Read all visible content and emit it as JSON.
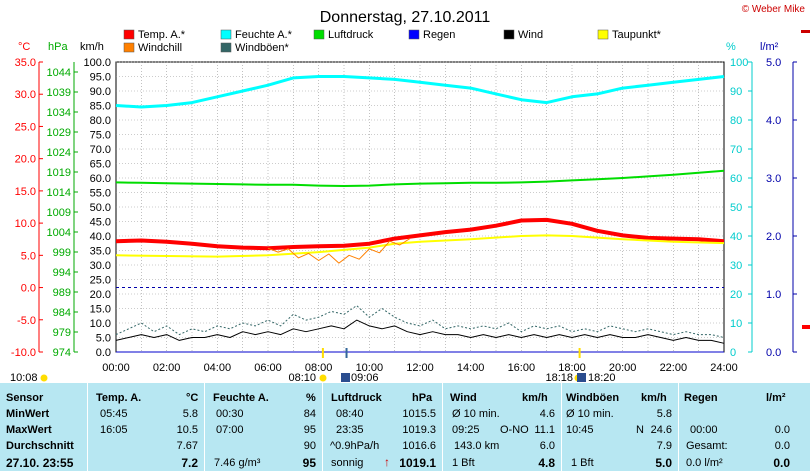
{
  "page": {
    "title": "Donnerstag, 27.10.2011",
    "copyright": "© Weber Mike"
  },
  "axis_units": {
    "temp": "°C",
    "pressure": "hPa",
    "wind": "km/h",
    "humidity": "%",
    "rain": "l/m²"
  },
  "legend": [
    {
      "label": "Temp. A.*",
      "color": "#ff0000"
    },
    {
      "label": "Feuchte A.*",
      "color": "#00ffff"
    },
    {
      "label": "Luftdruck",
      "color": "#00dd00"
    },
    {
      "label": "Regen",
      "color": "#0000ff"
    },
    {
      "label": "Wind",
      "color": "#000000"
    },
    {
      "label": "Taupunkt*",
      "color": "#ffff00"
    },
    {
      "label": "Windchill",
      "color": "#ff8000"
    },
    {
      "label": "Windböen*",
      "color": "#336666"
    }
  ],
  "colors": {
    "temp_axis": "#ff0000",
    "pressure_axis": "#00aa00",
    "humidity_axis": "#00cccc",
    "rain_axis": "#0000aa",
    "table_bg": "#b7e7f2",
    "rain_line": "#0000cc"
  },
  "markers": {
    "sunrise": "08:10",
    "sunset": "18:18",
    "moonrise": "09:06",
    "moonset": "18:20",
    "moon_prev": "10:08"
  },
  "table": {
    "headers": {
      "sensor": "Sensor",
      "temp": "Temp. A.",
      "temp_unit": "°C",
      "hum": "Feuchte A.",
      "hum_unit": "%",
      "press": "Luftdruck",
      "press_unit": "hPa",
      "wind": "Wind",
      "wind_unit": "km/h",
      "gust": "Windböen",
      "gust_unit": "km/h",
      "rain": "Regen",
      "rain_unit": "l/m²"
    },
    "rows": {
      "min": {
        "label": "MinWert",
        "temp_time": "05:45",
        "temp_val": "5.8",
        "hum_time": "00:30",
        "hum_val": "84",
        "press_time": "08:40",
        "press_val": "1015.5",
        "wind_a": "Ø 10 min.",
        "wind_val": "4.6",
        "gust_a": "Ø 10 min.",
        "gust_val": "5.8",
        "rain_a": "",
        "rain_val": ""
      },
      "max": {
        "label": "MaxWert",
        "temp_time": "16:05",
        "temp_val": "10.5",
        "hum_time": "07:00",
        "hum_val": "95",
        "press_time": "23:35",
        "press_val": "1019.3",
        "wind_a": "09:25",
        "wind_b": "O-NO",
        "wind_val": "11.1",
        "gust_a": "10:45",
        "gust_b": "N",
        "gust_val": "24.6",
        "rain_a": "00:00",
        "rain_val": "0.0"
      },
      "avg": {
        "label": "Durchschnitt",
        "temp_time": "",
        "temp_val": "7.67",
        "hum_time": "",
        "hum_val": "90",
        "press_time": "^0.9hPa/h",
        "press_val": "1016.6",
        "wind_a": "143.0 km",
        "wind_val": "6.0",
        "gust_a": "",
        "gust_val": "7.9",
        "rain_a": "Gesamt:",
        "rain_val": "0.0"
      },
      "now": {
        "label": "27.10. 23:55",
        "temp_time": "",
        "temp_val": "7.2",
        "hum_time": "7.46 g/m³",
        "hum_val": "95",
        "press_time": "sonnig",
        "press_trend": "↑",
        "press_val": "1019.1",
        "wind_a": "1 Bft",
        "wind_val": "4.8",
        "gust_a": "1 Bft",
        "gust_val": "5.0",
        "rain_a": "0.0 l/m²",
        "rain_val": "0.0"
      }
    }
  },
  "chart_data": {
    "type": "line",
    "title": "Donnerstag, 27.10.2011",
    "x_axis": {
      "label": "",
      "unit": "hour",
      "range": [
        0,
        24
      ],
      "ticks": [
        "00:00",
        "02:00",
        "04:00",
        "06:00",
        "08:00",
        "10:00",
        "12:00",
        "14:00",
        "16:00",
        "18:00",
        "20:00",
        "22:00",
        "24:00"
      ]
    },
    "y_axes": {
      "temp": {
        "unit": "°C",
        "range": [
          -10,
          35
        ],
        "ticks": [
          "35.0",
          "30.0",
          "25.0",
          "20.0",
          "15.0",
          "10.0",
          "5.0",
          "0.0",
          "-5.0",
          "-10.0"
        ]
      },
      "pressure": {
        "unit": "hPa",
        "range": [
          974,
          1046.5
        ],
        "ticks": [
          "1044",
          "1039",
          "1034",
          "1029",
          "1024",
          "1019",
          "1014",
          "1009",
          "1004",
          "999",
          "994",
          "989",
          "984",
          "979",
          "974"
        ]
      },
      "wind": {
        "unit": "km/h",
        "range": [
          0,
          100
        ],
        "ticks": [
          "100.0",
          "95.0",
          "90.0",
          "85.0",
          "80.0",
          "75.0",
          "70.0",
          "65.0",
          "60.0",
          "55.0",
          "50.0",
          "45.0",
          "40.0",
          "35.0",
          "30.0",
          "25.0",
          "20.0",
          "15.0",
          "10.0",
          "5.0",
          "0.0"
        ]
      },
      "humidity": {
        "unit": "%",
        "range": [
          0,
          100
        ],
        "ticks": [
          "100",
          "90",
          "80",
          "70",
          "60",
          "50",
          "40",
          "30",
          "20",
          "10",
          "0"
        ]
      },
      "rain": {
        "unit": "l/m²",
        "range": [
          0,
          5
        ],
        "ticks": [
          "5.0",
          "4.0",
          "3.0",
          "2.0",
          "1.0",
          "0.0"
        ]
      }
    },
    "grid": true,
    "series": [
      {
        "name": "Temp. A.*",
        "axis": "temp",
        "color": "#ff0000",
        "width": 4,
        "points": [
          [
            0,
            7.2
          ],
          [
            1,
            7.3
          ],
          [
            2,
            7.1
          ],
          [
            3,
            6.8
          ],
          [
            4,
            6.4
          ],
          [
            5,
            6.2
          ],
          [
            6,
            6.1
          ],
          [
            7,
            6.3
          ],
          [
            8,
            6.4
          ],
          [
            9,
            6.5
          ],
          [
            10,
            6.8
          ],
          [
            11,
            7.6
          ],
          [
            12,
            8.1
          ],
          [
            13,
            8.6
          ],
          [
            14,
            9.0
          ],
          [
            15,
            9.6
          ],
          [
            16,
            10.4
          ],
          [
            17,
            10.5
          ],
          [
            18,
            9.9
          ],
          [
            19,
            8.8
          ],
          [
            20,
            8.1
          ],
          [
            21,
            7.7
          ],
          [
            22,
            7.6
          ],
          [
            23,
            7.5
          ],
          [
            24,
            7.2
          ]
        ]
      },
      {
        "name": "Feuchte A.*",
        "axis": "humidity",
        "color": "#00ffff",
        "width": 3,
        "points": [
          [
            0,
            85
          ],
          [
            1,
            84.5
          ],
          [
            2,
            85
          ],
          [
            3,
            86
          ],
          [
            4,
            88
          ],
          [
            5,
            90
          ],
          [
            6,
            92
          ],
          [
            7,
            94.5
          ],
          [
            8,
            95
          ],
          [
            9,
            95
          ],
          [
            10,
            94.5
          ],
          [
            11,
            94
          ],
          [
            12,
            93
          ],
          [
            13,
            92
          ],
          [
            14,
            91
          ],
          [
            15,
            89
          ],
          [
            16,
            87
          ],
          [
            17,
            86
          ],
          [
            18,
            88
          ],
          [
            19,
            89
          ],
          [
            20,
            91
          ],
          [
            21,
            92
          ],
          [
            22,
            93
          ],
          [
            23,
            94
          ],
          [
            24,
            95
          ]
        ]
      },
      {
        "name": "Luftdruck",
        "axis": "pressure",
        "color": "#00dd00",
        "width": 2,
        "points": [
          [
            0,
            1016.4
          ],
          [
            1,
            1016.3
          ],
          [
            2,
            1016.2
          ],
          [
            3,
            1016.1
          ],
          [
            4,
            1016.0
          ],
          [
            5,
            1015.9
          ],
          [
            6,
            1015.8
          ],
          [
            7,
            1015.8
          ],
          [
            8,
            1015.6
          ],
          [
            9,
            1015.5
          ],
          [
            10,
            1015.6
          ],
          [
            11,
            1015.9
          ],
          [
            12,
            1016.1
          ],
          [
            13,
            1016.2
          ],
          [
            14,
            1016.3
          ],
          [
            15,
            1016.3
          ],
          [
            16,
            1016.4
          ],
          [
            17,
            1016.6
          ],
          [
            18,
            1016.9
          ],
          [
            19,
            1017.2
          ],
          [
            20,
            1017.5
          ],
          [
            21,
            1017.9
          ],
          [
            22,
            1018.3
          ],
          [
            23,
            1018.8
          ],
          [
            24,
            1019.3
          ]
        ]
      },
      {
        "name": "Taupunkt*",
        "axis": "temp",
        "color": "#ffff00",
        "width": 2,
        "points": [
          [
            0,
            5.0
          ],
          [
            2,
            4.9
          ],
          [
            4,
            4.8
          ],
          [
            6,
            5.0
          ],
          [
            8,
            5.5
          ],
          [
            10,
            6.2
          ],
          [
            11,
            6.8
          ],
          [
            12,
            7.1
          ],
          [
            14,
            7.5
          ],
          [
            16,
            8.0
          ],
          [
            17,
            8.1
          ],
          [
            18,
            8.0
          ],
          [
            20,
            7.5
          ],
          [
            22,
            7.1
          ],
          [
            24,
            6.9
          ]
        ]
      },
      {
        "name": "Windchill",
        "axis": "temp",
        "color": "#ff8000",
        "width": 1,
        "points": [
          [
            6.0,
            6.1
          ],
          [
            6.4,
            5.5
          ],
          [
            6.8,
            6.0
          ],
          [
            7.2,
            4.6
          ],
          [
            7.6,
            5.3
          ],
          [
            8.0,
            4.2
          ],
          [
            8.4,
            5.2
          ],
          [
            8.8,
            3.8
          ],
          [
            9.2,
            5.0
          ],
          [
            9.6,
            4.4
          ],
          [
            10.0,
            6.0
          ],
          [
            10.4,
            5.4
          ],
          [
            10.8,
            7.2
          ],
          [
            11.2,
            6.6
          ],
          [
            11.6,
            7.6
          ]
        ]
      },
      {
        "name": "Windböen*",
        "axis": "wind",
        "color": "#336666",
        "width": 1,
        "dashed": true,
        "points": [
          [
            0,
            6
          ],
          [
            0.5,
            8
          ],
          [
            1,
            10
          ],
          [
            1.5,
            7
          ],
          [
            2,
            9
          ],
          [
            2.5,
            6
          ],
          [
            3,
            8
          ],
          [
            3.5,
            7
          ],
          [
            4,
            9
          ],
          [
            4.5,
            8
          ],
          [
            5,
            10
          ],
          [
            5.5,
            9
          ],
          [
            6,
            11
          ],
          [
            6.5,
            9
          ],
          [
            7,
            13
          ],
          [
            7.5,
            11
          ],
          [
            8,
            12
          ],
          [
            8.5,
            14
          ],
          [
            9,
            13
          ],
          [
            9.5,
            16
          ],
          [
            10,
            12
          ],
          [
            10.5,
            15
          ],
          [
            11,
            12
          ],
          [
            11.5,
            10
          ],
          [
            12,
            9
          ],
          [
            12.5,
            11
          ],
          [
            13,
            8
          ],
          [
            13.5,
            9
          ],
          [
            14,
            8
          ],
          [
            14.5,
            9
          ],
          [
            15,
            8
          ],
          [
            15.5,
            10
          ],
          [
            16,
            7
          ],
          [
            16.5,
            9
          ],
          [
            17,
            8
          ],
          [
            17.5,
            9
          ],
          [
            18,
            7
          ],
          [
            18.5,
            8
          ],
          [
            19,
            7
          ],
          [
            19.5,
            9
          ],
          [
            20,
            8
          ],
          [
            20.5,
            7
          ],
          [
            21,
            8
          ],
          [
            21.5,
            7
          ],
          [
            22,
            6
          ],
          [
            22.5,
            7
          ],
          [
            23,
            6
          ],
          [
            23.5,
            6
          ],
          [
            24,
            5
          ]
        ]
      },
      {
        "name": "Wind",
        "axis": "wind",
        "color": "#000000",
        "width": 1,
        "points": [
          [
            0,
            4
          ],
          [
            0.5,
            5
          ],
          [
            1,
            6
          ],
          [
            1.5,
            5
          ],
          [
            2,
            6
          ],
          [
            2.5,
            4
          ],
          [
            3,
            5
          ],
          [
            3.5,
            5
          ],
          [
            4,
            6
          ],
          [
            4.5,
            5
          ],
          [
            5,
            7
          ],
          [
            5.5,
            6
          ],
          [
            6,
            7
          ],
          [
            6.5,
            6
          ],
          [
            7,
            8
          ],
          [
            7.5,
            7
          ],
          [
            8,
            8
          ],
          [
            8.5,
            9
          ],
          [
            9,
            8
          ],
          [
            9.5,
            11
          ],
          [
            10,
            9
          ],
          [
            10.5,
            8
          ],
          [
            11,
            9
          ],
          [
            11.5,
            7
          ],
          [
            12,
            6
          ],
          [
            12.5,
            7
          ],
          [
            13,
            6
          ],
          [
            13.5,
            6
          ],
          [
            14,
            5
          ],
          [
            14.5,
            6
          ],
          [
            15,
            5
          ],
          [
            15.5,
            6
          ],
          [
            16,
            5
          ],
          [
            16.5,
            6
          ],
          [
            17,
            5
          ],
          [
            17.5,
            6
          ],
          [
            18,
            5
          ],
          [
            18.5,
            6
          ],
          [
            19,
            5
          ],
          [
            19.5,
            6
          ],
          [
            20,
            5
          ],
          [
            20.5,
            5
          ],
          [
            21,
            6
          ],
          [
            21.5,
            5
          ],
          [
            22,
            4
          ],
          [
            22.5,
            5
          ],
          [
            23,
            4
          ],
          [
            23.5,
            4
          ],
          [
            24,
            3
          ]
        ]
      },
      {
        "name": "Regen",
        "axis": "rain",
        "color": "#0000cc",
        "width": 1,
        "points": [
          [
            0,
            0
          ],
          [
            24,
            0
          ]
        ]
      }
    ]
  }
}
